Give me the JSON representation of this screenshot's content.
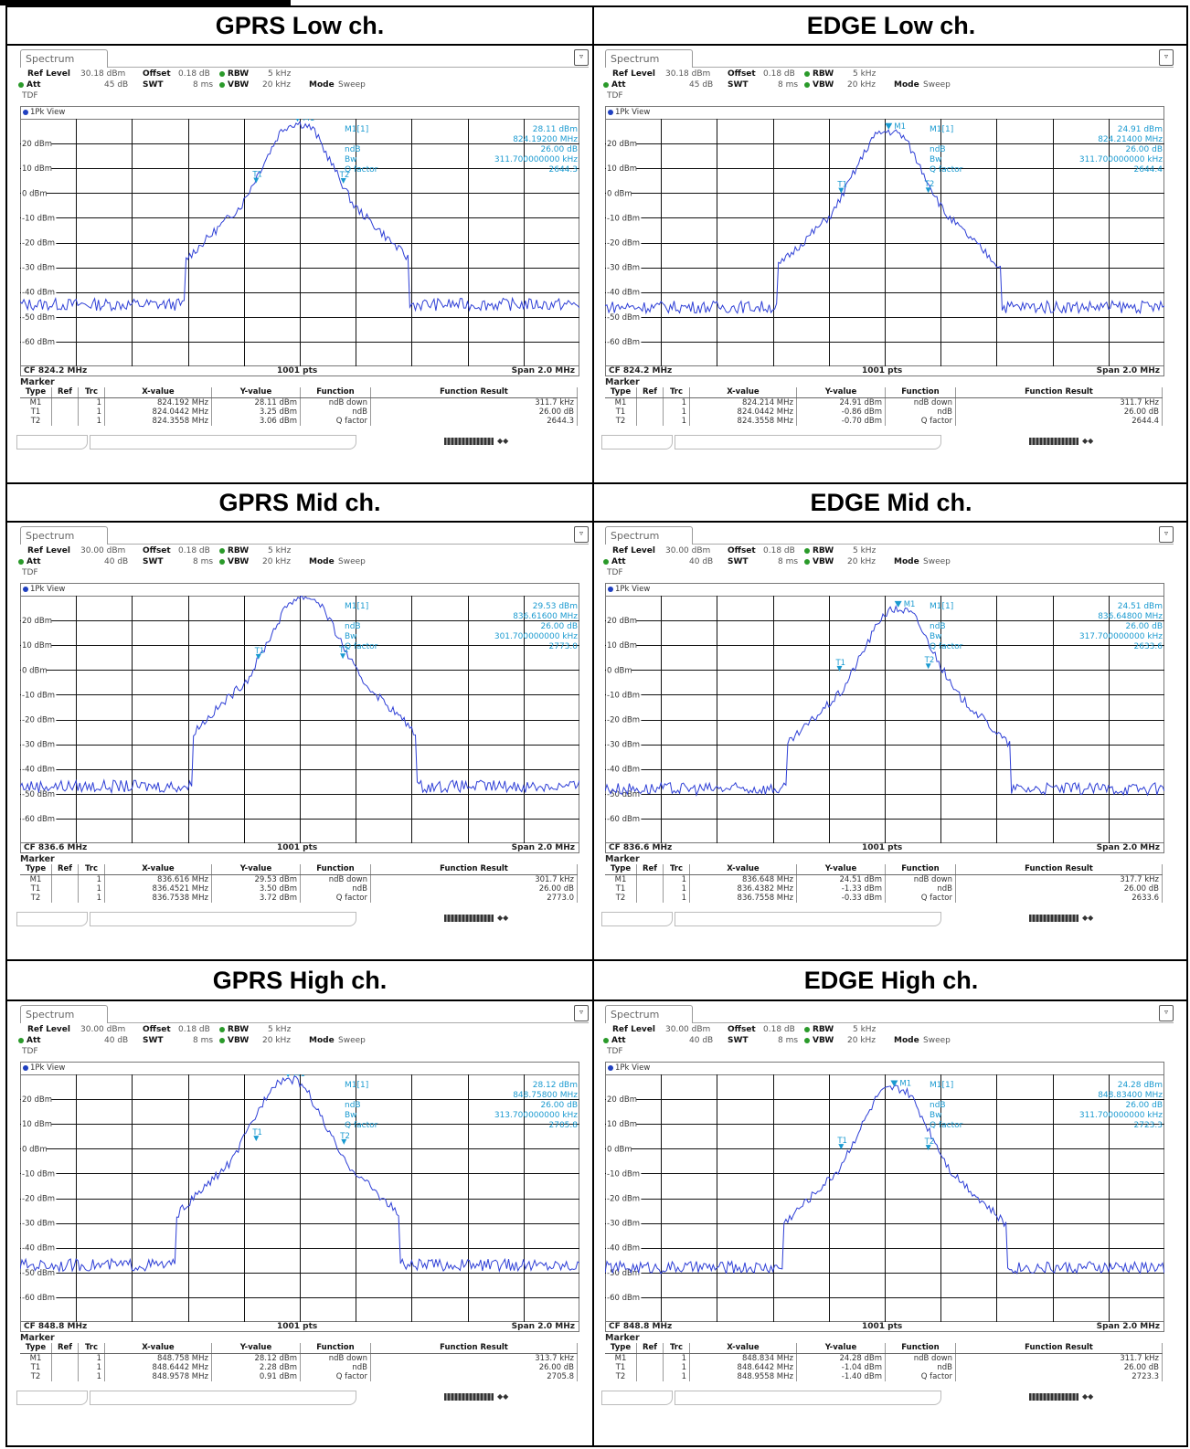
{
  "tab_label": "Spectrum",
  "view_label": "1Pk View",
  "labels": {
    "ref_level": "Ref Level",
    "offset": "Offset",
    "rbw": "RBW",
    "att": "Att",
    "swt": "SWT",
    "vbw": "VBW",
    "mode": "Mode",
    "tdf": "TDF",
    "points": "1001 pts",
    "span": "Span 2.0 MHz",
    "marker": "Marker",
    "m1": "M1[1]",
    "ndb": "ndB",
    "bw": "Bw",
    "qfactor": "Q factor"
  },
  "table_headers": [
    "Type",
    "Ref",
    "Trc",
    "X-value",
    "Y-value",
    "Function",
    "Function Result"
  ],
  "y_tick_labels": [
    "20 dBm",
    "10 dBm",
    "0 dBm",
    "-10 dBm",
    "-20 dBm",
    "-30 dBm",
    "-40 dBm",
    "-50 dBm",
    "-60 dBm"
  ],
  "colors": {
    "trace": "#2e3fd6",
    "marker": "#1a9ad0",
    "grid": "#000000"
  },
  "chart_data": [
    {
      "type": "line",
      "title": "GPRS Low ch.",
      "settings": {
        "ref_level": "30.18 dBm",
        "offset": "0.18 dB",
        "rbw": "5 kHz",
        "att": "45 dB",
        "swt": "8 ms",
        "vbw": "20 kHz",
        "mode": "Sweep"
      },
      "cf": "CF 824.2 MHz",
      "cf_mhz": 824.2,
      "span_mhz": 2.0,
      "ylim": [
        -70,
        30
      ],
      "peak_dbm": 28.11,
      "floor_dbm": -45,
      "peak_x": 824.192,
      "t1_x": 824.0442,
      "t2_x": 824.3558,
      "readout": [
        "28.11 dBm",
        "824.19200 MHz",
        "26.00 dB",
        "311.700000000 kHz",
        "2644.3"
      ],
      "markers": [
        {
          "type": "M1",
          "ref": "",
          "trc": "1",
          "x": "824.192 MHz",
          "y": "28.11 dBm",
          "function": "ndB down",
          "result": "311.7 kHz"
        },
        {
          "type": "T1",
          "ref": "",
          "trc": "1",
          "x": "824.0442 MHz",
          "y": "3.25 dBm",
          "function": "ndB",
          "result": "26.00 dB"
        },
        {
          "type": "T2",
          "ref": "",
          "trc": "1",
          "x": "824.3558 MHz",
          "y": "3.06 dBm",
          "function": "Q factor",
          "result": "2644.3"
        }
      ]
    },
    {
      "type": "line",
      "title": "EDGE Low ch.",
      "settings": {
        "ref_level": "30.18 dBm",
        "offset": "0.18 dB",
        "rbw": "5 kHz",
        "att": "45 dB",
        "swt": "8 ms",
        "vbw": "20 kHz",
        "mode": "Sweep"
      },
      "cf": "CF 824.2 MHz",
      "cf_mhz": 824.2,
      "span_mhz": 2.0,
      "ylim": [
        -70,
        30
      ],
      "peak_dbm": 24.91,
      "floor_dbm": -46,
      "peak_x": 824.214,
      "t1_x": 824.0442,
      "t2_x": 824.3558,
      "readout": [
        "24.91 dBm",
        "824.21400 MHz",
        "26.00 dB",
        "311.700000000 kHz",
        "2644.4"
      ],
      "markers": [
        {
          "type": "M1",
          "ref": "",
          "trc": "1",
          "x": "824.214 MHz",
          "y": "24.91 dBm",
          "function": "ndB down",
          "result": "311.7 kHz"
        },
        {
          "type": "T1",
          "ref": "",
          "trc": "1",
          "x": "824.0442 MHz",
          "y": "-0.86 dBm",
          "function": "ndB",
          "result": "26.00 dB"
        },
        {
          "type": "T2",
          "ref": "",
          "trc": "1",
          "x": "824.3558 MHz",
          "y": "-0.70 dBm",
          "function": "Q factor",
          "result": "2644.4"
        }
      ]
    },
    {
      "type": "line",
      "title": "GPRS Mid ch.",
      "settings": {
        "ref_level": "30.00 dBm",
        "offset": "0.18 dB",
        "rbw": "5 kHz",
        "att": "40 dB",
        "swt": "8 ms",
        "vbw": "20 kHz",
        "mode": "Sweep"
      },
      "cf": "CF 836.6 MHz",
      "cf_mhz": 836.6,
      "span_mhz": 2.0,
      "ylim": [
        -70,
        30
      ],
      "peak_dbm": 29.53,
      "floor_dbm": -47,
      "peak_x": 836.616,
      "t1_x": 836.4521,
      "t2_x": 836.7538,
      "readout": [
        "29.53 dBm",
        "836.61600 MHz",
        "26.00 dB",
        "301.700000000 kHz",
        "2773.0"
      ],
      "markers": [
        {
          "type": "M1",
          "ref": "",
          "trc": "1",
          "x": "836.616 MHz",
          "y": "29.53 dBm",
          "function": "ndB down",
          "result": "301.7 kHz"
        },
        {
          "type": "T1",
          "ref": "",
          "trc": "1",
          "x": "836.4521 MHz",
          "y": "3.50 dBm",
          "function": "ndB",
          "result": "26.00 dB"
        },
        {
          "type": "T2",
          "ref": "",
          "trc": "1",
          "x": "836.7538 MHz",
          "y": "3.72 dBm",
          "function": "Q factor",
          "result": "2773.0"
        }
      ]
    },
    {
      "type": "line",
      "title": "EDGE Mid ch.",
      "settings": {
        "ref_level": "30.00 dBm",
        "offset": "0.18 dB",
        "rbw": "5 kHz",
        "att": "40 dB",
        "swt": "8 ms",
        "vbw": "20 kHz",
        "mode": "Sweep"
      },
      "cf": "CF 836.6 MHz",
      "cf_mhz": 836.6,
      "span_mhz": 2.0,
      "ylim": [
        -70,
        30
      ],
      "peak_dbm": 24.51,
      "floor_dbm": -48,
      "peak_x": 836.648,
      "t1_x": 836.4382,
      "t2_x": 836.7558,
      "readout": [
        "24.51 dBm",
        "836.64800 MHz",
        "26.00 dB",
        "317.700000000 kHz",
        "2633.6"
      ],
      "markers": [
        {
          "type": "M1",
          "ref": "",
          "trc": "1",
          "x": "836.648 MHz",
          "y": "24.51 dBm",
          "function": "ndB down",
          "result": "317.7 kHz"
        },
        {
          "type": "T1",
          "ref": "",
          "trc": "1",
          "x": "836.4382 MHz",
          "y": "-1.33 dBm",
          "function": "ndB",
          "result": "26.00 dB"
        },
        {
          "type": "T2",
          "ref": "",
          "trc": "1",
          "x": "836.7558 MHz",
          "y": "-0.33 dBm",
          "function": "Q factor",
          "result": "2633.6"
        }
      ]
    },
    {
      "type": "line",
      "title": "GPRS High ch.",
      "settings": {
        "ref_level": "30.00 dBm",
        "offset": "0.18 dB",
        "rbw": "5 kHz",
        "att": "40 dB",
        "swt": "8 ms",
        "vbw": "20 kHz",
        "mode": "Sweep"
      },
      "cf": "CF 848.8 MHz",
      "cf_mhz": 848.8,
      "span_mhz": 2.0,
      "ylim": [
        -70,
        30
      ],
      "peak_dbm": 28.12,
      "floor_dbm": -47,
      "peak_x": 848.758,
      "t1_x": 848.6442,
      "t2_x": 848.9578,
      "readout": [
        "28.12 dBm",
        "848.75800 MHz",
        "26.00 dB",
        "313.700000000 kHz",
        "2705.8"
      ],
      "markers": [
        {
          "type": "M1",
          "ref": "",
          "trc": "1",
          "x": "848.758 MHz",
          "y": "28.12 dBm",
          "function": "ndB down",
          "result": "313.7 kHz"
        },
        {
          "type": "T1",
          "ref": "",
          "trc": "1",
          "x": "848.6442 MHz",
          "y": "2.28 dBm",
          "function": "ndB",
          "result": "26.00 dB"
        },
        {
          "type": "T2",
          "ref": "",
          "trc": "1",
          "x": "848.9578 MHz",
          "y": "0.91 dBm",
          "function": "Q factor",
          "result": "2705.8"
        }
      ]
    },
    {
      "type": "line",
      "title": "EDGE High ch.",
      "settings": {
        "ref_level": "30.00 dBm",
        "offset": "0.18 dB",
        "rbw": "5 kHz",
        "att": "40 dB",
        "swt": "8 ms",
        "vbw": "20 kHz",
        "mode": "Sweep"
      },
      "cf": "CF 848.8 MHz",
      "cf_mhz": 848.8,
      "span_mhz": 2.0,
      "ylim": [
        -70,
        30
      ],
      "peak_dbm": 24.28,
      "floor_dbm": -48,
      "peak_x": 848.834,
      "t1_x": 848.6442,
      "t2_x": 848.9558,
      "readout": [
        "24.28 dBm",
        "848.83400 MHz",
        "26.00 dB",
        "311.700000000 kHz",
        "2723.3"
      ],
      "markers": [
        {
          "type": "M1",
          "ref": "",
          "trc": "1",
          "x": "848.834 MHz",
          "y": "24.28 dBm",
          "function": "ndB down",
          "result": "311.7 kHz"
        },
        {
          "type": "T1",
          "ref": "",
          "trc": "1",
          "x": "848.6442 MHz",
          "y": "-1.04 dBm",
          "function": "ndB",
          "result": "26.00 dB"
        },
        {
          "type": "T2",
          "ref": "",
          "trc": "1",
          "x": "848.9558 MHz",
          "y": "-1.40 dBm",
          "function": "Q factor",
          "result": "2723.3"
        }
      ]
    }
  ]
}
